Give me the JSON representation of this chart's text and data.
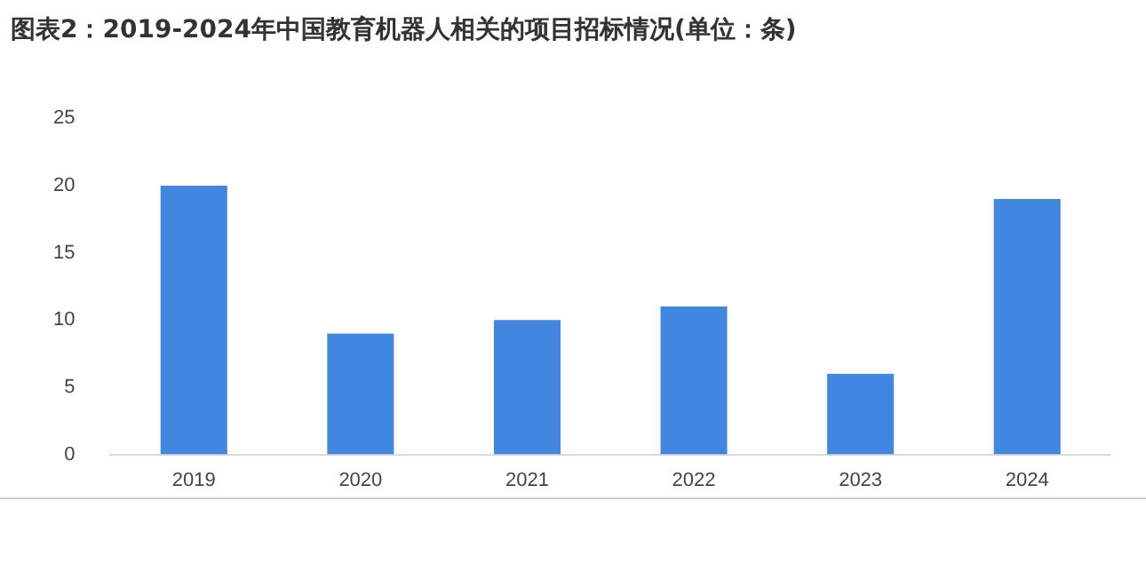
{
  "chart_data": {
    "type": "bar",
    "title": "图表2：2019-2024年中国教育机器人相关的项目招标情况(单位：条)",
    "categories": [
      "2019",
      "2020",
      "2021",
      "2022",
      "2023",
      "2024"
    ],
    "values": [
      20,
      9,
      10,
      11,
      6,
      19
    ],
    "color": "#4186e0",
    "ylim": [
      0,
      25
    ],
    "yticks": [
      0,
      5,
      10,
      15,
      20,
      25
    ],
    "grid": false,
    "legend": false
  }
}
